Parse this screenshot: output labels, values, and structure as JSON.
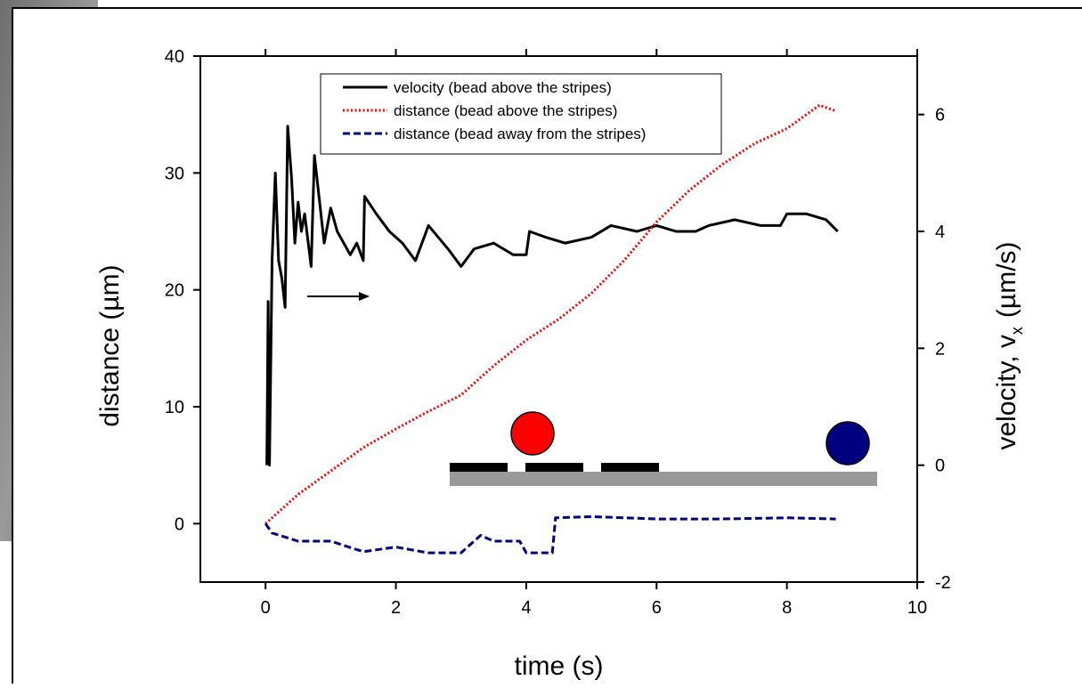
{
  "chart_data": {
    "type": "line",
    "xlabel": "time (s)",
    "ylabel": "distance (µm)",
    "y2label": "velocity, v",
    "y2label_sub": "x",
    "y2label_unit": "(µm/s)",
    "xlim": [
      -1,
      10
    ],
    "xticks": [
      0,
      2,
      4,
      6,
      8,
      10
    ],
    "ylim": [
      -5,
      40
    ],
    "yticks": [
      0,
      10,
      20,
      30,
      40
    ],
    "y2lim": [
      -2,
      7
    ],
    "y2ticks": [
      -2,
      0,
      2,
      4,
      6
    ],
    "legend": "upper left",
    "series": [
      {
        "name": "velocity (bead above the stripes)",
        "color": "#000000",
        "style": "solid",
        "axis": "y2",
        "x": [
          0.02,
          0.04,
          0.06,
          0.1,
          0.15,
          0.2,
          0.25,
          0.3,
          0.34,
          0.4,
          0.45,
          0.5,
          0.55,
          0.6,
          0.7,
          0.75,
          0.8,
          0.9,
          1.0,
          1.1,
          1.2,
          1.3,
          1.4,
          1.5,
          1.52,
          1.7,
          1.9,
          2.1,
          2.3,
          2.5,
          2.8,
          3.0,
          3.2,
          3.5,
          3.8,
          4.0,
          4.05,
          4.3,
          4.6,
          5.0,
          5.3,
          5.7,
          6.0,
          6.3,
          6.6,
          6.8,
          7.2,
          7.6,
          7.9,
          8.0,
          8.3,
          8.6,
          8.78
        ],
        "values": [
          0,
          2.8,
          0,
          3.5,
          5.0,
          3.5,
          3.2,
          2.7,
          5.8,
          4.9,
          3.8,
          4.5,
          4.0,
          4.3,
          3.4,
          5.3,
          4.8,
          3.8,
          4.4,
          4.0,
          3.8,
          3.6,
          3.8,
          3.5,
          4.6,
          4.3,
          4.0,
          3.8,
          3.5,
          4.1,
          3.7,
          3.4,
          3.7,
          3.8,
          3.6,
          3.6,
          4.0,
          3.9,
          3.8,
          3.9,
          4.1,
          4.0,
          4.1,
          4.0,
          4.0,
          4.1,
          4.2,
          4.1,
          4.1,
          4.3,
          4.3,
          4.2,
          4.0
        ]
      },
      {
        "name": "distance (bead above the stripes)",
        "color": "#ff0000",
        "style": "dotted",
        "x": [
          0,
          0.5,
          1,
          1.5,
          2,
          2.5,
          3,
          3.5,
          4,
          4.5,
          5,
          5.5,
          6,
          6.5,
          7,
          7.5,
          8,
          8.5,
          8.75
        ],
        "values": [
          0,
          2.5,
          4.5,
          6.5,
          8.1,
          9.6,
          11,
          13.5,
          15.7,
          17.5,
          19.7,
          22.5,
          25.8,
          28.5,
          30.7,
          32.5,
          33.8,
          35.8,
          35.3
        ]
      },
      {
        "name": "distance (bead away from the stripes)",
        "color": "#000080",
        "style": "dashed",
        "x": [
          0,
          0.1,
          0.5,
          1,
          1.5,
          2,
          2.5,
          3,
          3.3,
          3.5,
          3.9,
          4.0,
          4.4,
          4.45,
          5,
          6,
          7,
          8,
          8.75
        ],
        "values": [
          0,
          -0.8,
          -1.5,
          -1.5,
          -2.4,
          -2,
          -2.5,
          -2.5,
          -1,
          -1.5,
          -1.5,
          -2.5,
          -2.5,
          0.5,
          0.6,
          0.4,
          0.4,
          0.5,
          0.4
        ]
      }
    ]
  }
}
